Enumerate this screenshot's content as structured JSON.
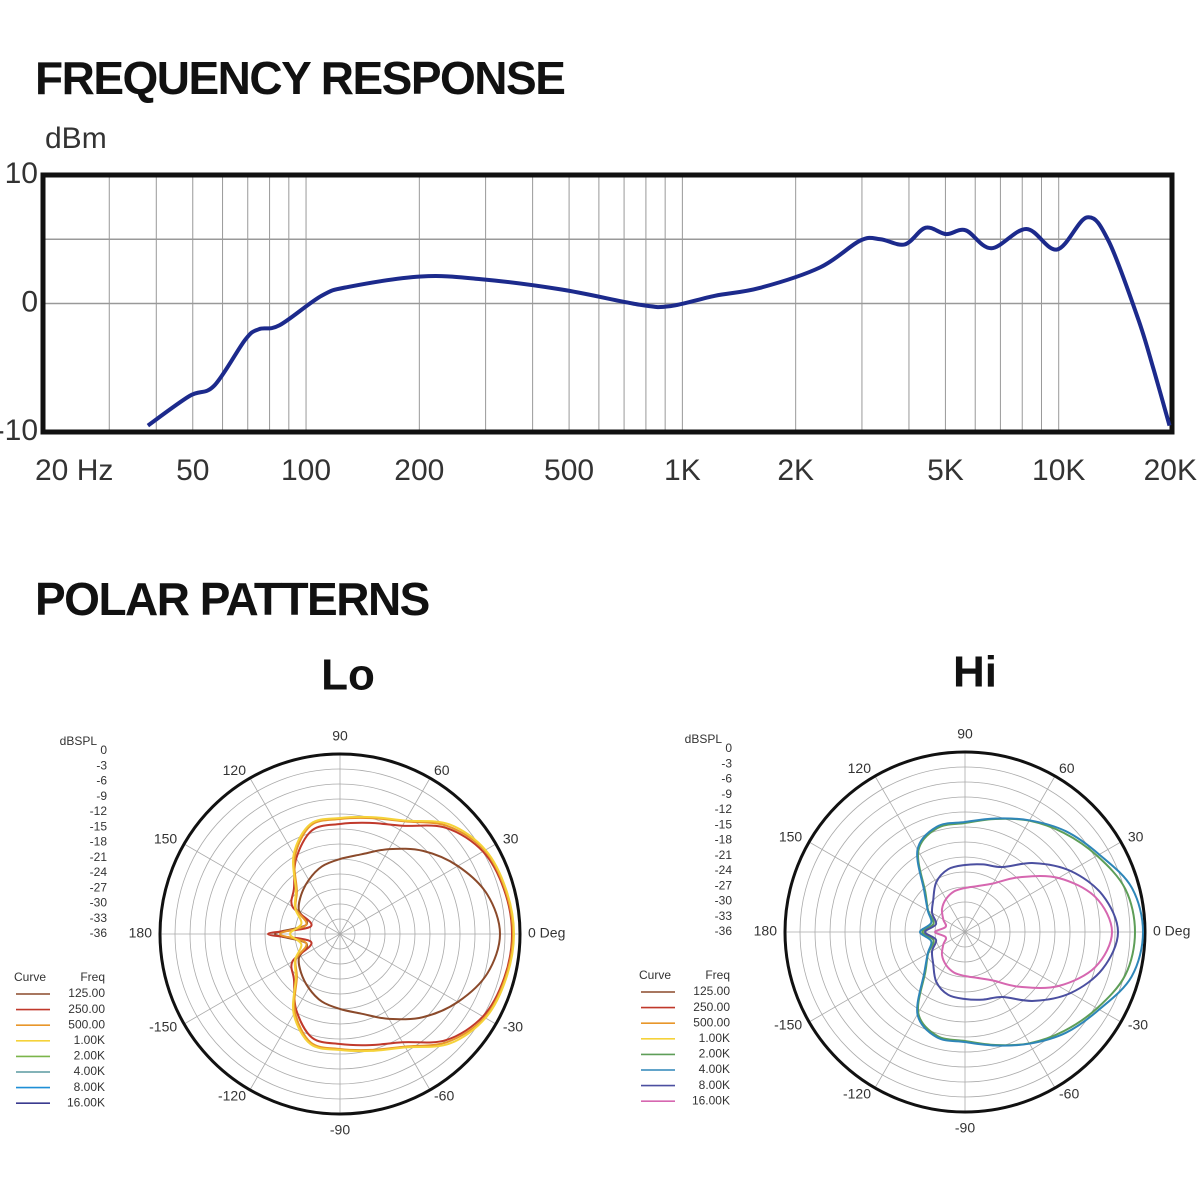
{
  "heading": "POLAR PATTERNS",
  "chart_data": [
    {
      "type": "line",
      "title": "FREQUENCY RESPONSE",
      "ylabel": "dBm",
      "xscale": "log",
      "xlim": [
        20,
        20000
      ],
      "xticks": [
        {
          "value": 20,
          "label": "20 Hz"
        },
        50,
        100,
        200,
        500,
        {
          "value": 1000,
          "label": "1K"
        },
        {
          "value": 2000,
          "label": "2K"
        },
        {
          "value": 5000,
          "label": "5K"
        },
        {
          "value": 10000,
          "label": "10K"
        },
        {
          "value": 20000,
          "label": "20K"
        }
      ],
      "xminor": [
        30,
        40,
        60,
        70,
        80,
        90,
        300,
        400,
        600,
        700,
        800,
        900,
        3000,
        4000,
        6000,
        7000,
        8000,
        9000
      ],
      "ylim": [
        -10,
        10
      ],
      "yticks": [
        -10,
        0,
        10
      ],
      "ygrid": [
        0,
        5
      ],
      "color": "#1c2a8c",
      "x": [
        38,
        49,
        57,
        69,
        75,
        85,
        110,
        130,
        202,
        290,
        475,
        772,
        930,
        1220,
        1600,
        2320,
        2970,
        3360,
        3900,
        4430,
        5020,
        5660,
        6620,
        8200,
        9900,
        11900,
        13600,
        16300,
        17900,
        19700
      ],
      "values": [
        -9.5,
        -7.2,
        -6.4,
        -2.8,
        -2.0,
        -1.7,
        0.6,
        1.3,
        2.1,
        1.9,
        1.1,
        -0.1,
        -0.2,
        0.6,
        1.2,
        2.8,
        4.9,
        5.0,
        4.6,
        5.9,
        5.4,
        5.7,
        4.3,
        5.8,
        4.2,
        6.7,
        4.8,
        -1.3,
        -5.2,
        -9.5
      ]
    },
    {
      "type": "polar",
      "title": "Lo",
      "rlabel": "dBSPL",
      "rlim": [
        -36,
        0
      ],
      "rticks": [
        0,
        -3,
        -6,
        -9,
        -12,
        -15,
        -18,
        -21,
        -24,
        -27,
        -30,
        -33,
        -36
      ],
      "thetaticks": [
        {
          "value": 0,
          "label": "0 Deg"
        },
        30,
        60,
        90,
        120,
        150,
        180,
        -150,
        -120,
        -90,
        -60,
        -30
      ],
      "legend_columns": [
        "Curve",
        "Freq"
      ],
      "theta": [
        0,
        15,
        30,
        45,
        60,
        75,
        90,
        105,
        120,
        135,
        150,
        165,
        180,
        195,
        210,
        225,
        240,
        255,
        270,
        285,
        300,
        315,
        330,
        345
      ],
      "series": [
        {
          "name": "125.00",
          "color": "#8b4a2b",
          "values": [
            -4,
            -5.5,
            -8.8,
            -12.5,
            -16.4,
            -19.5,
            -21,
            -22,
            -23.5,
            -25,
            -26.5,
            -29,
            -23,
            -29,
            -26.5,
            -25,
            -23.5,
            -22,
            -21,
            -19.5,
            -16.4,
            -12.5,
            -8.8,
            -5.5
          ]
        },
        {
          "name": "250.00",
          "color": "#c0392b",
          "values": [
            -1.6,
            -2,
            -3,
            -6,
            -11,
            -13,
            -14,
            -14.5,
            -18.5,
            -23,
            -25,
            -30,
            -21.6,
            -30,
            -25,
            -23,
            -18.5,
            -14.5,
            -14,
            -13,
            -11,
            -6,
            -3,
            -2
          ]
        },
        {
          "name": "500.00",
          "color": "#e8962a",
          "values": [
            -1.4,
            -1.8,
            -2.6,
            -5.5,
            -10,
            -12,
            -13,
            -13.5,
            -18,
            -23.8,
            -25.8,
            -29,
            -24,
            -29,
            -25.8,
            -23.8,
            -18,
            -13.5,
            -13,
            -12,
            -10,
            -5.5,
            -2.6,
            -1.8
          ]
        },
        {
          "name": "1.00K",
          "color": "#f5d23a",
          "values": [
            -1.2,
            -1.6,
            -2.4,
            -5,
            -9.8,
            -11.8,
            -12.8,
            -13.2,
            -17.5,
            -23.5,
            -25.6,
            -28,
            -26,
            -28,
            -25.6,
            -23.5,
            -17.5,
            -13.2,
            -12.8,
            -11.8,
            -9.8,
            -5,
            -2.4,
            -1.6
          ]
        },
        {
          "name": "2.00K",
          "color": "#7bb54a"
        },
        {
          "name": "4.00K",
          "color": "#5a9aa0"
        },
        {
          "name": "8.00K",
          "color": "#1f8fd6"
        },
        {
          "name": "16.00K",
          "color": "#3b3b8f"
        }
      ]
    },
    {
      "type": "polar",
      "title": "Hi",
      "rlabel": "dBSPL",
      "rlim": [
        -36,
        0
      ],
      "rticks": [
        0,
        -3,
        -6,
        -9,
        -12,
        -15,
        -18,
        -21,
        -24,
        -27,
        -30,
        -33,
        -36
      ],
      "thetaticks": [
        {
          "value": 0,
          "label": "0 Deg"
        },
        30,
        60,
        90,
        120,
        150,
        180,
        -150,
        -120,
        -90,
        -60,
        -30
      ],
      "legend_columns": [
        "Curve",
        "Freq"
      ],
      "theta": [
        0,
        15,
        30,
        45,
        60,
        75,
        90,
        105,
        120,
        135,
        150,
        165,
        180,
        195,
        210,
        225,
        240,
        255,
        270,
        285,
        300,
        315,
        330,
        345
      ],
      "series": [
        {
          "name": "125.00",
          "color": "#8b4a2b"
        },
        {
          "name": "250.00",
          "color": "#c0392b"
        },
        {
          "name": "500.00",
          "color": "#e8962a"
        },
        {
          "name": "1.00K",
          "color": "#f5d23a"
        },
        {
          "name": "2.00K",
          "color": "#5e9e58",
          "values": [
            -2,
            -2.8,
            -5.5,
            -8,
            -10.3,
            -12.6,
            -14.2,
            -14.5,
            -17.3,
            -24.8,
            -27.5,
            -29.5,
            -27.5,
            -29.5,
            -27.5,
            -24.8,
            -17.3,
            -14.5,
            -14.2,
            -12.6,
            -10.3,
            -8,
            -5.5,
            -2.8
          ]
        },
        {
          "name": "4.00K",
          "color": "#2e86b8",
          "values": [
            -0.4,
            -1.5,
            -5,
            -7.5,
            -10.2,
            -12.5,
            -14,
            -14.2,
            -17,
            -24.5,
            -27.4,
            -29,
            -27,
            -29,
            -27.4,
            -24.5,
            -17,
            -14.2,
            -14,
            -12.5,
            -10.2,
            -7.5,
            -5,
            -1.5
          ]
        },
        {
          "name": "8.00K",
          "color": "#4b4fa0",
          "values": [
            -5.4,
            -7.5,
            -11.6,
            -16.5,
            -21,
            -22,
            -22.6,
            -23,
            -24.5,
            -27,
            -28.4,
            -30,
            -28,
            -30,
            -28.4,
            -27,
            -24.5,
            -23,
            -22.6,
            -22,
            -21,
            -16.5,
            -11.6,
            -7.5
          ]
        },
        {
          "name": "16.00K",
          "color": "#d667b0",
          "values": [
            -6.6,
            -9,
            -14.4,
            -20.5,
            -24.8,
            -26.5,
            -27.2,
            -27.6,
            -28.4,
            -29.5,
            -31,
            -32,
            -30,
            -32,
            -31,
            -29.5,
            -28.4,
            -27.6,
            -27.2,
            -26.5,
            -24.8,
            -20.5,
            -14.4,
            -9
          ]
        }
      ]
    }
  ]
}
